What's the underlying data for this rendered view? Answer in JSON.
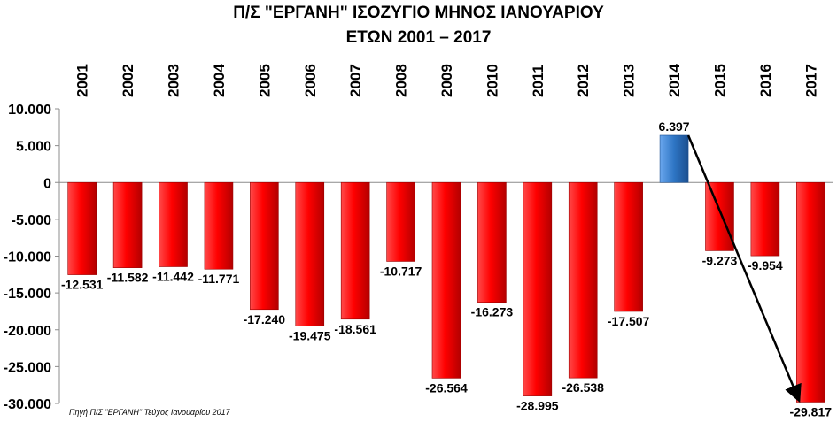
{
  "chart_data": {
    "type": "bar",
    "title": "Π/Σ \"ΕΡΓΑΝΗ\" ΙΣΟΖΥΓΙΟ ΜΗΝΟΣ ΙΑΝΟΥΑΡΙΟΥ",
    "subtitle": "ΕΤΩΝ 2001 – 2017",
    "categories": [
      "2001",
      "2002",
      "2003",
      "2004",
      "2005",
      "2006",
      "2007",
      "2008",
      "2009",
      "2010",
      "2011",
      "2012",
      "2013",
      "2014",
      "2015",
      "2016",
      "2017"
    ],
    "values": [
      -12531,
      -11582,
      -11442,
      -11771,
      -17240,
      -19475,
      -18561,
      -10717,
      -26564,
      -16273,
      -28995,
      -26538,
      -17507,
      6397,
      -9273,
      -9954,
      -29817
    ],
    "value_labels": [
      "-12.531",
      "-11.582",
      "-11.442",
      "-11.771",
      "-17.240",
      "-19.475",
      "-18.561",
      "-10.717",
      "-26.564",
      "-16.273",
      "-28.995",
      "-26.538",
      "-17.507",
      "6.397",
      "-9.273",
      "-9.954",
      "-29.817"
    ],
    "ylim": [
      -30000,
      10000
    ],
    "yticks": [
      10000,
      5000,
      0,
      -5000,
      -10000,
      -15000,
      -20000,
      -25000,
      -30000
    ],
    "ytick_labels": [
      "10.000",
      "5.000",
      "0",
      "-5.000",
      "-10.000",
      "-15.000",
      "-20.000",
      "-25.000",
      "-30.000"
    ],
    "xlabel": "",
    "ylabel": "",
    "grid": false,
    "x_axis_position": "top",
    "colors": {
      "negative": "#e60000",
      "positive": "#2e75c4",
      "arrow": "#000000"
    },
    "annotation": {
      "type": "arrow",
      "from": "2014",
      "to": "2017"
    }
  },
  "source": "Πηγή Π/Σ \"ΕΡΓΑΝΗ\" Τεύχος Ιανουαρίου 2017"
}
